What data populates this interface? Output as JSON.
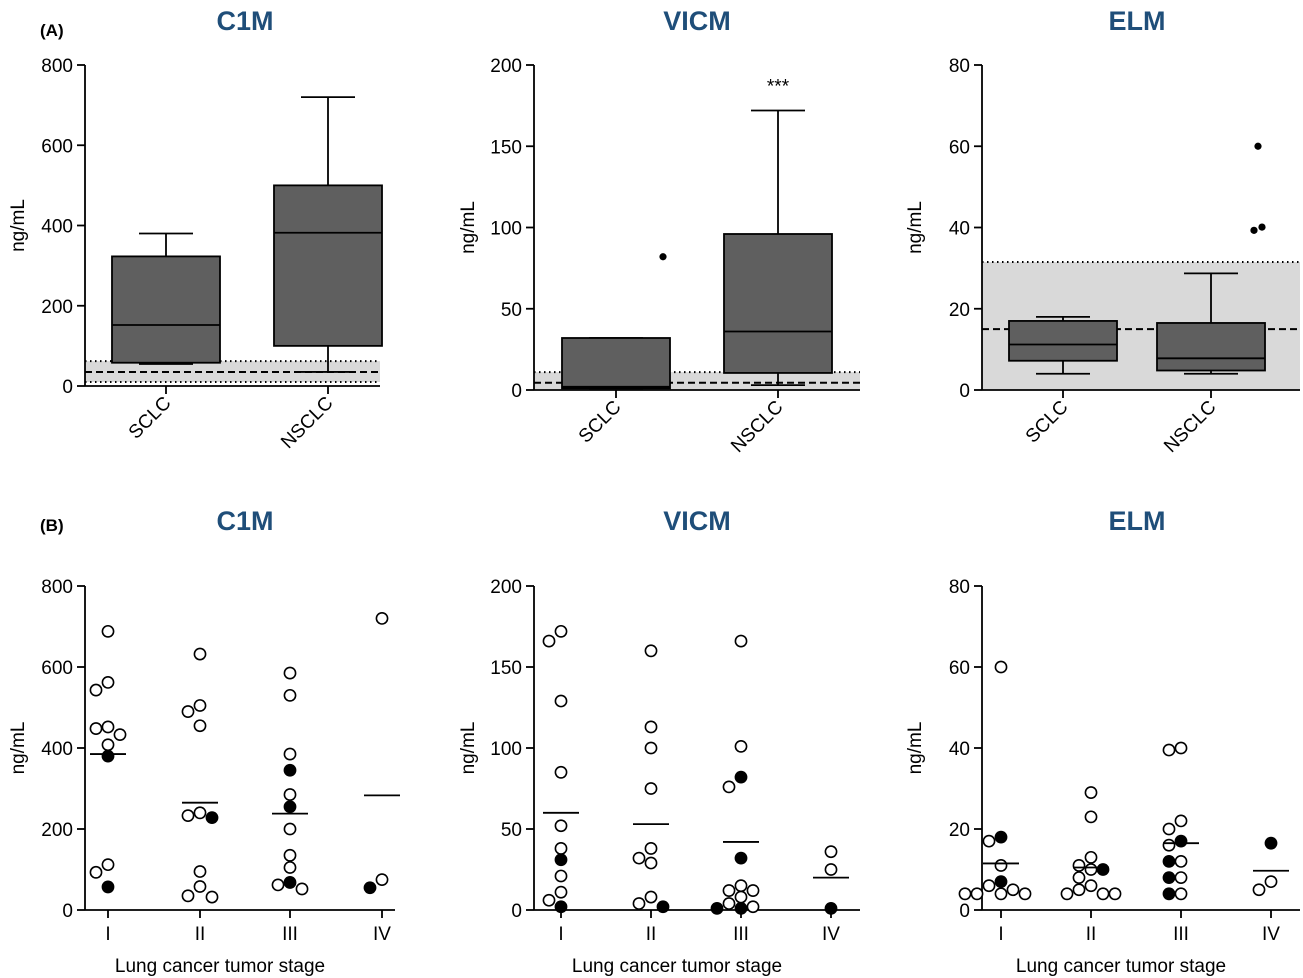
{
  "panel_labels": [
    "(A)",
    "(B)"
  ],
  "chart_data": [
    {
      "type": "box",
      "title": "C1M",
      "ylabel": "ng/mL",
      "ylim": [
        0,
        800
      ],
      "yticks": [
        0,
        200,
        400,
        600,
        800
      ],
      "categories": [
        "SCLC",
        "NSCLC"
      ],
      "boxes": [
        {
          "category": "SCLC",
          "whisker_low": 55,
          "q1": 58,
          "median": 152,
          "q3": 323,
          "whisker_high": 380,
          "outliers": []
        },
        {
          "category": "NSCLC",
          "whisker_low": 35,
          "q1": 100,
          "median": 382,
          "q3": 500,
          "whisker_high": 720,
          "outliers": []
        }
      ],
      "reference_band": {
        "low": 10,
        "high": 62,
        "line": 35
      },
      "annotation": ""
    },
    {
      "type": "box",
      "title": "VICM",
      "ylabel": "ng/mL",
      "ylim": [
        0,
        200
      ],
      "yticks": [
        0,
        50,
        100,
        150,
        200
      ],
      "categories": [
        "SCLC",
        "NSCLC"
      ],
      "boxes": [
        {
          "category": "SCLC",
          "whisker_low": 1,
          "q1": 1,
          "median": 2,
          "q3": 32,
          "whisker_high": 32,
          "outliers": [
            82
          ]
        },
        {
          "category": "NSCLC",
          "whisker_low": 3,
          "q1": 10.5,
          "median": 36,
          "q3": 96,
          "whisker_high": 172,
          "outliers": []
        }
      ],
      "reference_band": {
        "low": 0,
        "high": 11,
        "line": 4.5
      },
      "annotation": "***"
    },
    {
      "type": "box",
      "title": "ELM",
      "ylabel": "ng/mL",
      "ylim": [
        0,
        80
      ],
      "yticks": [
        0,
        20,
        40,
        60,
        80
      ],
      "categories": [
        "SCLC",
        "NSCLC"
      ],
      "boxes": [
        {
          "category": "SCLC",
          "whisker_low": 4,
          "q1": 7.2,
          "median": 11.2,
          "q3": 17,
          "whisker_high": 18,
          "outliers": []
        },
        {
          "category": "NSCLC",
          "whisker_low": 4,
          "q1": 4.8,
          "median": 7.8,
          "q3": 16.5,
          "whisker_high": 28.7,
          "outliers": [
            39.3,
            40.1,
            60
          ]
        }
      ],
      "reference_band": {
        "low": 0,
        "high": 31.5,
        "line": 15
      },
      "annotation": ""
    },
    {
      "type": "scatter",
      "title": "C1M",
      "ylabel": "ng/mL",
      "xlabel": "Lung cancer tumor stage",
      "ylim": [
        0,
        800
      ],
      "yticks": [
        0,
        200,
        400,
        600,
        800
      ],
      "categories": [
        "I",
        "II",
        "III",
        "IV"
      ],
      "groups": [
        {
          "category": "I",
          "mean": 385,
          "open": [
            688,
            562,
            543,
            452,
            448,
            433,
            408,
            112,
            93
          ],
          "filled": [
            380,
            57
          ]
        },
        {
          "category": "II",
          "mean": 265,
          "open": [
            632,
            505,
            490,
            455,
            240,
            233,
            95,
            58,
            35,
            32
          ],
          "filled": [
            228
          ]
        },
        {
          "category": "III",
          "mean": 238,
          "open": [
            585,
            530,
            385,
            285,
            200,
            135,
            105,
            62,
            52
          ],
          "filled": [
            345,
            255,
            68
          ]
        },
        {
          "category": "IV",
          "mean": 283,
          "open": [
            720,
            75
          ],
          "filled": [
            55
          ]
        }
      ]
    },
    {
      "type": "scatter",
      "title": "VICM",
      "ylabel": "ng/mL",
      "xlabel": "Lung cancer tumor stage",
      "ylim": [
        0,
        200
      ],
      "yticks": [
        0,
        50,
        100,
        150,
        200
      ],
      "categories": [
        "I",
        "II",
        "III",
        "IV"
      ],
      "groups": [
        {
          "category": "I",
          "mean": 60,
          "open": [
            172,
            166,
            129,
            85,
            52,
            38,
            21,
            11,
            6
          ],
          "filled": [
            31,
            2
          ]
        },
        {
          "category": "II",
          "mean": 53,
          "open": [
            160,
            113,
            100,
            75,
            38,
            32,
            29,
            8,
            4
          ],
          "filled": [
            2
          ]
        },
        {
          "category": "III",
          "mean": 42,
          "open": [
            166,
            101,
            76,
            15,
            12,
            12,
            8,
            4,
            2
          ],
          "filled": [
            82,
            32,
            1,
            1
          ]
        },
        {
          "category": "IV",
          "mean": 20,
          "open": [
            36,
            25
          ],
          "filled": [
            1
          ]
        }
      ]
    },
    {
      "type": "scatter",
      "title": "ELM",
      "ylabel": "ng/mL",
      "xlabel": "Lung cancer tumor stage",
      "ylim": [
        0,
        80
      ],
      "yticks": [
        0,
        20,
        40,
        60,
        80
      ],
      "categories": [
        "I",
        "II",
        "III",
        "IV"
      ],
      "groups": [
        {
          "category": "I",
          "mean": 11.5,
          "open": [
            60,
            17,
            11,
            6,
            5,
            4,
            4,
            4,
            4
          ],
          "filled": [
            18,
            7
          ]
        },
        {
          "category": "II",
          "mean": 10.5,
          "open": [
            29,
            23,
            13,
            11,
            10,
            8,
            6,
            5,
            4,
            4,
            4
          ],
          "filled": [
            10
          ]
        },
        {
          "category": "III",
          "mean": 16.5,
          "open": [
            40,
            39.5,
            22,
            20,
            16,
            12,
            8,
            4
          ],
          "filled": [
            17,
            12,
            8,
            4
          ]
        },
        {
          "category": "IV",
          "mean": 9.7,
          "open": [
            7,
            5
          ],
          "filled": [
            16.5
          ]
        }
      ]
    }
  ]
}
